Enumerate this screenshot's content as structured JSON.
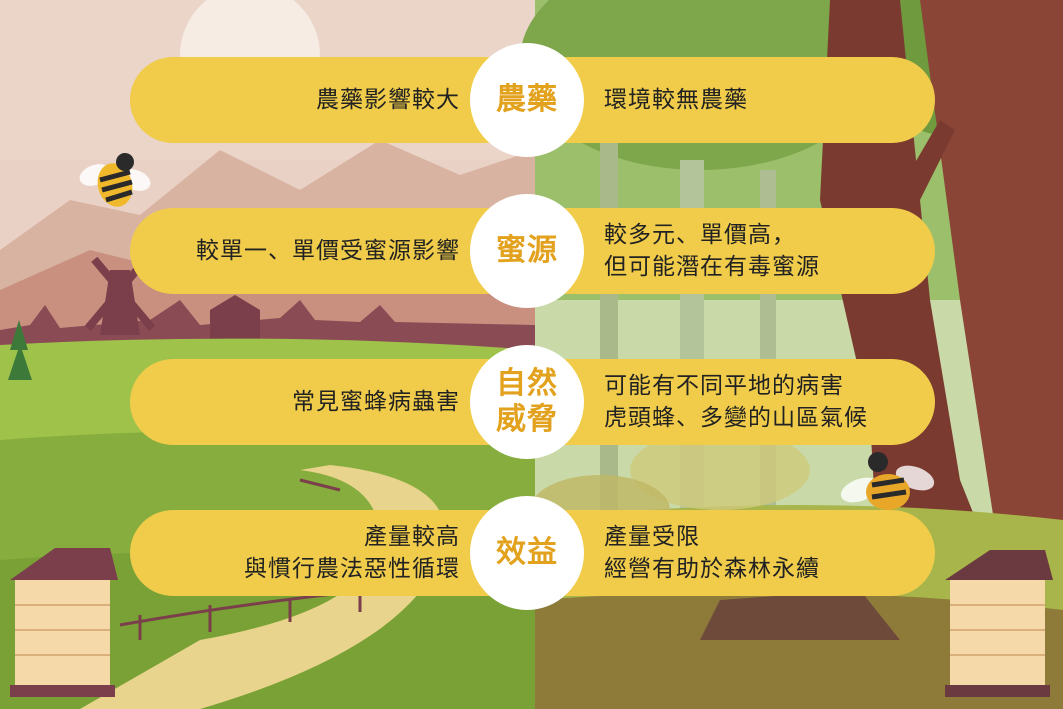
{
  "rows": [
    {
      "category": [
        "農藥"
      ],
      "left": [
        "農藥影響較大"
      ],
      "right": [
        "環境較無農藥"
      ]
    },
    {
      "category": [
        "蜜源"
      ],
      "left": [
        "較單一、單價受蜜源影響"
      ],
      "right": [
        "較多元、單價高，",
        "但可能潛在有毒蜜源"
      ]
    },
    {
      "category": [
        "自然",
        "威脅"
      ],
      "left": [
        "常見蜜蜂病蟲害"
      ],
      "right": [
        "可能有不同平地的病害",
        "虎頭蜂、多變的山區氣候"
      ]
    },
    {
      "category": [
        "效益"
      ],
      "left": [
        "產量較高",
        "與慣行農法惡性循環"
      ],
      "right": [
        "產量受限",
        "經營有助於森林永續"
      ]
    }
  ],
  "colors": {
    "pill": "#f0cc4a",
    "category_text": "#e3a21e",
    "circle": "#ffffff"
  }
}
